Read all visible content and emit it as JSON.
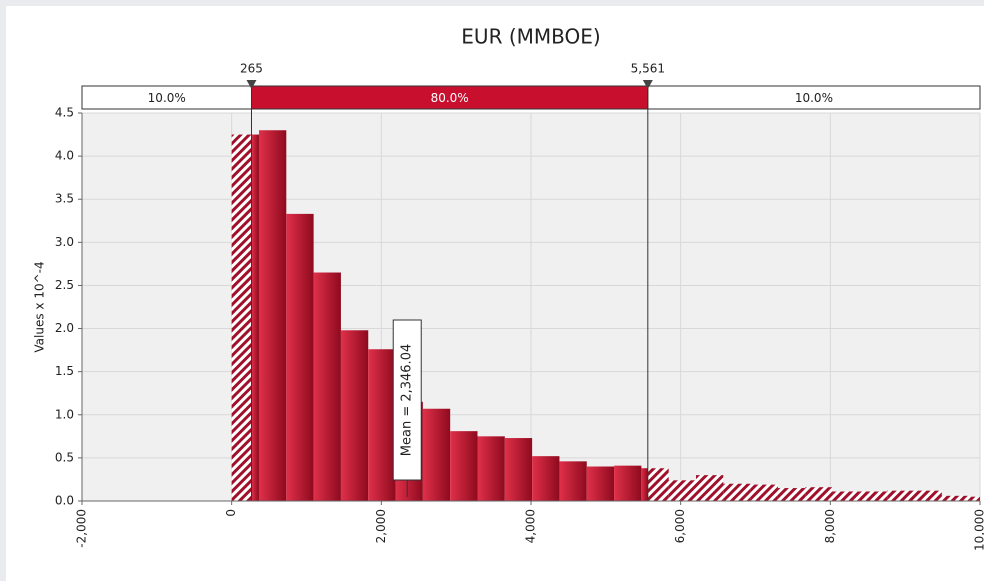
{
  "chart_data": {
    "type": "histogram",
    "title": "EUR (MMBOE)",
    "ylabel": "Values x 10^-4",
    "bins": [
      0,
      365,
      730,
      1095,
      1460,
      1825,
      2190,
      2555,
      2920,
      3285,
      3650,
      4015,
      4380,
      4745,
      5110,
      5475,
      5840,
      6205,
      6570,
      6935,
      7300,
      7665,
      8030,
      8395,
      8760,
      9125,
      9490,
      9855,
      10220
    ],
    "values": [
      4.25,
      4.3,
      3.33,
      2.65,
      1.98,
      1.76,
      1.15,
      1.07,
      0.81,
      0.75,
      0.73,
      0.52,
      0.46,
      0.4,
      0.41,
      0.38,
      0.24,
      0.3,
      0.2,
      0.19,
      0.15,
      0.16,
      0.11,
      0.11,
      0.12,
      0.12,
      0.06,
      0.05
    ],
    "color": "#c8102e",
    "xlim": [
      -2000,
      10000
    ],
    "xticks": [
      {
        "value": -2000,
        "label": "-2,000"
      },
      0,
      {
        "value": 2000,
        "label": "2,000"
      },
      {
        "value": 4000,
        "label": "4,000"
      },
      {
        "value": 6000,
        "label": "6,000"
      },
      {
        "value": 8000,
        "label": "8,000"
      },
      {
        "value": 10000,
        "label": "10,000"
      }
    ],
    "ylim": [
      0,
      4.5
    ],
    "yticks": [
      {
        "value": 0,
        "label": "0.0"
      },
      0.5,
      {
        "value": 1,
        "label": "1.0"
      },
      1.5,
      {
        "value": 2,
        "label": "2.0"
      },
      2.5,
      {
        "value": 3,
        "label": "3.0"
      },
      3.5,
      {
        "value": 4,
        "label": "4.0"
      },
      4.5
    ],
    "grid": true,
    "delimiters": {
      "values": [
        265,
        5561
      ],
      "value_labels": [
        "265",
        "5,561"
      ]
    },
    "bands": {
      "values": [
        10,
        80,
        10
      ],
      "value_labels": [
        "10.0%",
        "80.0%",
        "10.0%"
      ]
    },
    "mean": 2346.04,
    "mean_label": "Mean = 2,346.04"
  }
}
